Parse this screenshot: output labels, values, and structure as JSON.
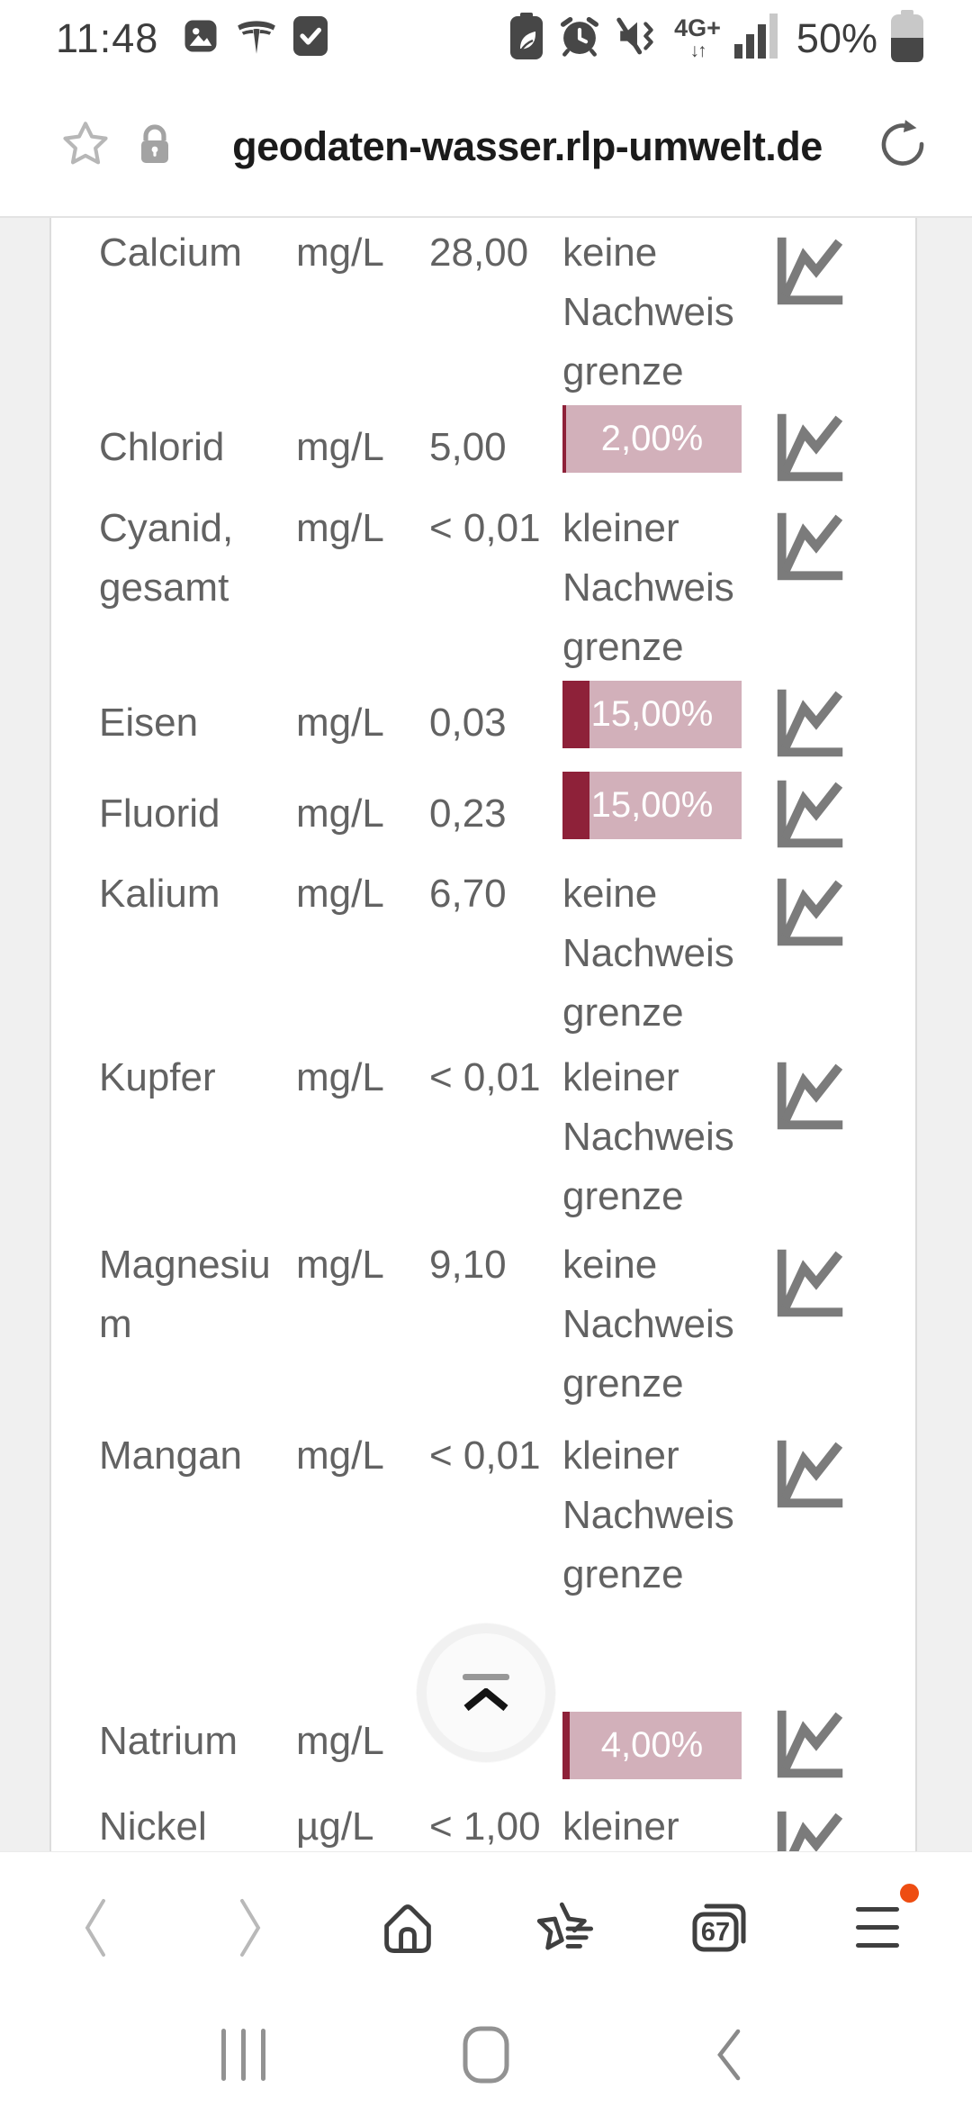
{
  "status_bar": {
    "time": "11:48",
    "left_icons": [
      "gallery-icon",
      "tesla-icon",
      "checkbox-icon"
    ],
    "right_icons": [
      "battery-saver-icon",
      "alarm-icon",
      "mute-vibrate-icon",
      "network-4g-icon",
      "signal-bars-icon",
      "battery-icon"
    ],
    "network_label": "4G+",
    "network_arrows": "↓↑",
    "battery_percent": "50%"
  },
  "address_bar": {
    "url": "geodaten-wasser.rlp-umwelt.de",
    "icons": [
      "bookmark-star-icon",
      "lock-icon",
      "refresh-icon"
    ]
  },
  "page": {
    "rows": [
      {
        "name": "Calcium",
        "unit": "mg/L",
        "value": "28,00",
        "status": "keine Nachweisgrenze"
      },
      {
        "name": "Chlorid",
        "unit": "mg/L",
        "value": "5,00",
        "percent_label": "2,00%",
        "percent": 2
      },
      {
        "name": "Cyanid, gesamt",
        "unit": "mg/L",
        "value": "< 0,01",
        "status": "kleiner Nachweisgrenze"
      },
      {
        "name": "Eisen",
        "unit": "mg/L",
        "value": "0,03",
        "percent_label": "15,00%",
        "percent": 15
      },
      {
        "name": "Fluorid",
        "unit": "mg/L",
        "value": "0,23",
        "percent_label": "15,00%",
        "percent": 15
      },
      {
        "name": "Kalium",
        "unit": "mg/L",
        "value": "6,70",
        "status": "keine Nachweisgrenze"
      },
      {
        "name": "Kupfer",
        "unit": "mg/L",
        "value": "< 0,01",
        "status": "kleiner Nachweisgrenze"
      },
      {
        "name": "Magnesium",
        "unit": "mg/L",
        "value": "9,10",
        "status": "keine Nachweisgrenze"
      },
      {
        "name": "Mangan",
        "unit": "mg/L",
        "value": "< 0,01",
        "status": "kleiner Nachweisgrenze"
      },
      {
        "name": "Natrium",
        "unit": "mg/L",
        "value": "",
        "percent_label": "4,00%",
        "percent": 4
      },
      {
        "name": "Nickel",
        "unit": "µg/L",
        "value": "< 1,00",
        "status": "kleiner"
      }
    ],
    "row_icon": "trend-chart-icon",
    "scroll_top_icon": "scroll-to-top-icon"
  },
  "browser_nav": {
    "tab_count": "67",
    "icons": [
      "back-icon",
      "forward-icon",
      "home-icon",
      "bookmarks-icon",
      "tabs-icon",
      "menu-icon"
    ]
  },
  "system_nav": {
    "icons": [
      "recents-icon",
      "home-pill-icon",
      "back-chevron-icon"
    ]
  },
  "colors": {
    "bar_fill": "#8e2139",
    "bar_bg": "#d2b0ba",
    "accent_dot": "#ee4d12"
  }
}
